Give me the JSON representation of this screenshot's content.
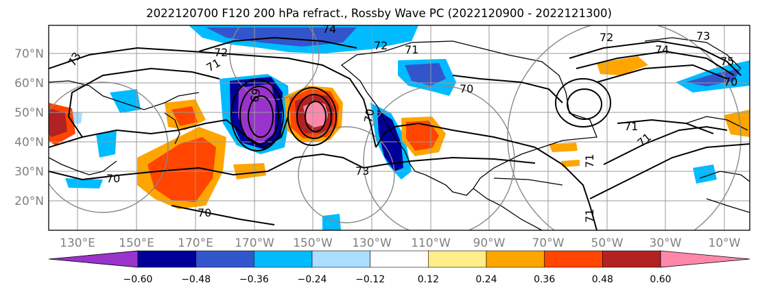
{
  "title": "2022120700 F120 200 hPa refract., Rossby Wave PC (2022120900 - 2022121300)",
  "lat_ticks": [
    "70°N",
    "60°N",
    "50°N",
    "40°N",
    "30°N",
    "20°N"
  ],
  "lon_ticks": [
    "130°E",
    "150°E",
    "170°E",
    "170°W",
    "150°W",
    "130°W",
    "110°W",
    "90°W",
    "70°W",
    "50°W",
    "30°W",
    "10°W"
  ],
  "colorbar": {
    "colors": [
      "#9933cc",
      "#000099",
      "#3355cc",
      "#00bbff",
      "#aaddff",
      "#ffffff",
      "#ffee88",
      "#ffa500",
      "#ff4500",
      "#b22222",
      "#ff88aa"
    ],
    "labels": [
      "−0.60",
      "−0.48",
      "−0.36",
      "−0.24",
      "−0.12",
      "0.12",
      "0.24",
      "0.36",
      "0.48",
      "0.60"
    ]
  },
  "contour_labels": [
    "72",
    "74",
    "73",
    "71",
    "72",
    "71",
    "69",
    "70",
    "70",
    "70",
    "73",
    "70",
    "72",
    "74",
    "73",
    "75",
    "70",
    "71",
    "71",
    "71",
    "71"
  ]
}
